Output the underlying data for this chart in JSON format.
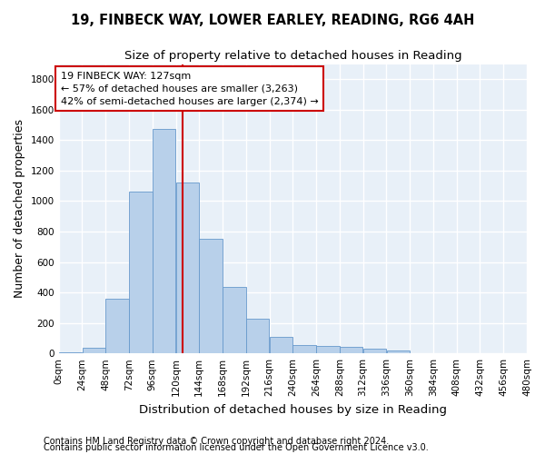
{
  "title_line1": "19, FINBECK WAY, LOWER EARLEY, READING, RG6 4AH",
  "title_line2": "Size of property relative to detached houses in Reading",
  "xlabel": "Distribution of detached houses by size in Reading",
  "ylabel": "Number of detached properties",
  "bar_color": "#b8d0ea",
  "bar_edge_color": "#6699cc",
  "background_color": "#e8f0f8",
  "grid_color": "#ffffff",
  "bin_edges": [
    0,
    24,
    48,
    72,
    96,
    120,
    144,
    168,
    192,
    216,
    240,
    264,
    288,
    312,
    336,
    360,
    384,
    408,
    432,
    456,
    480
  ],
  "bar_heights": [
    10,
    35,
    360,
    1060,
    1475,
    1120,
    750,
    435,
    225,
    110,
    55,
    50,
    40,
    28,
    20,
    0,
    0,
    0,
    0,
    0
  ],
  "property_size": 127,
  "vline_color": "#cc0000",
  "annotation_text": "19 FINBECK WAY: 127sqm\n← 57% of detached houses are smaller (3,263)\n42% of semi-detached houses are larger (2,374) →",
  "annotation_box_color": "#ffffff",
  "annotation_box_edge": "#cc0000",
  "footnote1": "Contains HM Land Registry data © Crown copyright and database right 2024.",
  "footnote2": "Contains public sector information licensed under the Open Government Licence v3.0.",
  "ylim": [
    0,
    1900
  ],
  "xlim": [
    0,
    480
  ],
  "title_fontsize": 10.5,
  "subtitle_fontsize": 9.5,
  "axis_label_fontsize": 9,
  "tick_fontsize": 7.5,
  "annotation_fontsize": 8,
  "footnote_fontsize": 7
}
